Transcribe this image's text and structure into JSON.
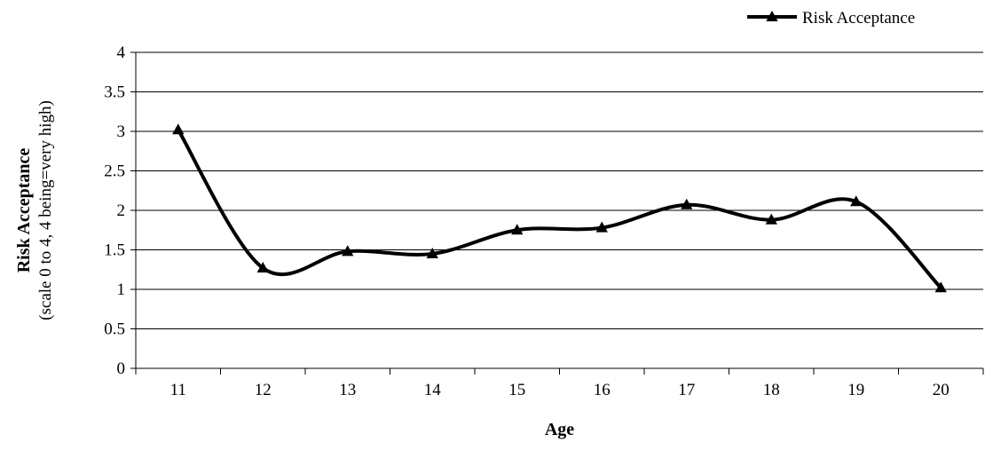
{
  "chart_data": {
    "type": "line",
    "title": "",
    "xlabel": "Age",
    "ylabel": "Risk Acceptance",
    "ylabel_sub": "(scale 0 to 4, 4 being=very high)",
    "x": [
      "11",
      "12",
      "13",
      "14",
      "15",
      "16",
      "17",
      "18",
      "19",
      "20"
    ],
    "series": [
      {
        "name": "Risk Acceptance",
        "values": [
          3.02,
          1.27,
          1.48,
          1.45,
          1.75,
          1.78,
          2.07,
          1.88,
          2.11,
          1.02
        ],
        "marker": "triangle",
        "color": "#000000",
        "smooth": true
      }
    ],
    "ylim": [
      0,
      4
    ],
    "yticks": [
      "0",
      "0.5",
      "1",
      "1.5",
      "2",
      "2.5",
      "3",
      "3.5",
      "4"
    ],
    "grid": "horizontal",
    "legend_position": "top-right"
  }
}
